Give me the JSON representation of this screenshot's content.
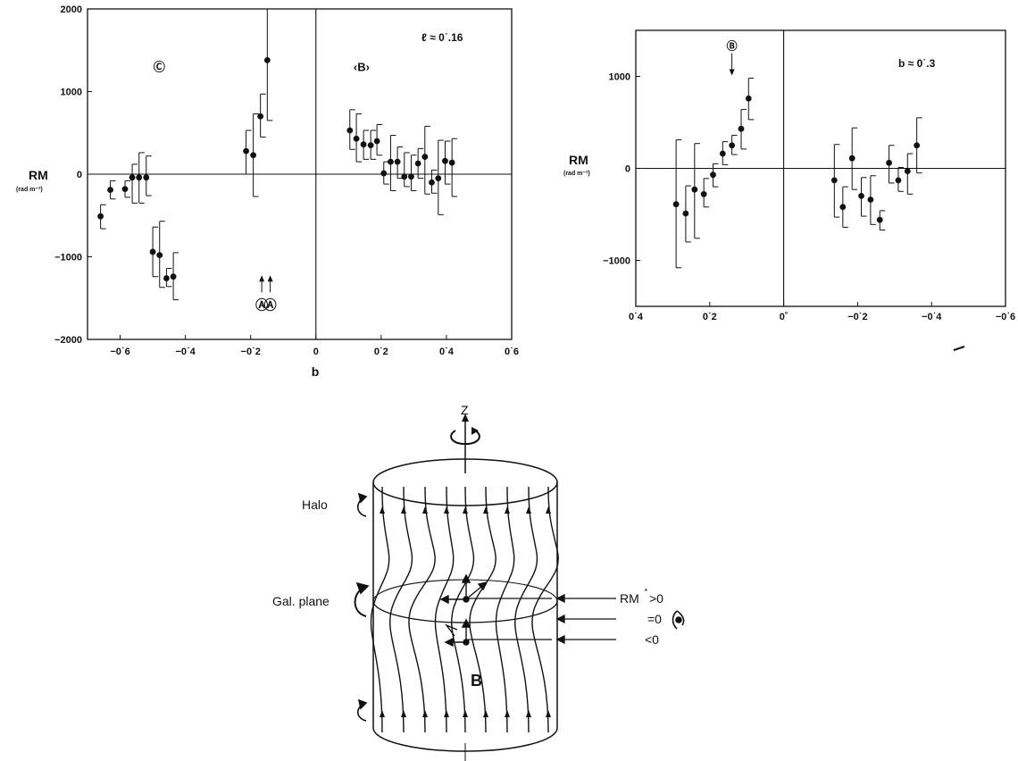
{
  "chart_data": [
    {
      "type": "scatter",
      "title": "",
      "xlabel": "b",
      "ylabel": "RM",
      "ylabel_unit": "(rad m⁻²)",
      "xlim": [
        -0.7,
        0.6
      ],
      "ylim": [
        -2000,
        2000
      ],
      "x_ticks": [
        -0.6,
        -0.4,
        -0.2,
        0,
        0.2,
        0.4,
        0.6
      ],
      "x_tick_labels": [
        "−0˙6",
        "−0˙4",
        "−0˙2",
        "0",
        "0˙2",
        "0˙4",
        "0˙6"
      ],
      "y_ticks": [
        2000,
        1000,
        0,
        -1000,
        -2000
      ],
      "y_tick_labels": [
        "2000",
        "1000",
        "0",
        "−1000",
        "−2000"
      ],
      "grid": false,
      "annotation_top_right": "ℓ ≈ 0˙.16",
      "region_labels": [
        {
          "label": "Ⓒ",
          "x": -0.48,
          "y": 1250
        },
        {
          "label": "‹B›",
          "x": 0.14,
          "y": 1250
        }
      ],
      "markers": [
        {
          "label": "Ⓐ",
          "x": -0.166,
          "arrow_from": -1300
        },
        {
          "label": "Ⓐ",
          "x": -0.14,
          "arrow_from": -1300
        }
      ],
      "series": [
        {
          "points": [
            {
              "x": -0.66,
              "y": -510,
              "lo": -660,
              "hi": -370
            },
            {
              "x": -0.63,
              "y": -190,
              "lo": -300,
              "hi": -80
            },
            {
              "x": -0.585,
              "y": -180,
              "lo": -280,
              "hi": -80
            },
            {
              "x": -0.563,
              "y": -40,
              "lo": -350,
              "hi": 120
            },
            {
              "x": -0.542,
              "y": -40,
              "lo": -350,
              "hi": 260
            },
            {
              "x": -0.52,
              "y": -40,
              "lo": -260,
              "hi": 220
            },
            {
              "x": -0.5,
              "y": -940,
              "lo": -1240,
              "hi": -640
            },
            {
              "x": -0.479,
              "y": -980,
              "lo": -1370,
              "hi": -570
            },
            {
              "x": -0.458,
              "y": -1260,
              "lo": -1360,
              "hi": -1140
            },
            {
              "x": -0.437,
              "y": -1240,
              "lo": -1520,
              "hi": -950
            },
            {
              "x": -0.214,
              "y": 280,
              "lo": 0,
              "hi": 530
            },
            {
              "x": -0.192,
              "y": 230,
              "lo": -270,
              "hi": 730
            },
            {
              "x": -0.17,
              "y": 700,
              "lo": 450,
              "hi": 970
            },
            {
              "x": -0.149,
              "y": 1380,
              "lo": 650,
              "hi": 2000
            },
            {
              "x": 0.104,
              "y": 530,
              "lo": 300,
              "hi": 780
            },
            {
              "x": 0.124,
              "y": 430,
              "lo": 150,
              "hi": 730
            },
            {
              "x": 0.146,
              "y": 360,
              "lo": 180,
              "hi": 530
            },
            {
              "x": 0.168,
              "y": 350,
              "lo": 180,
              "hi": 530
            },
            {
              "x": 0.187,
              "y": 400,
              "lo": 230,
              "hi": 600
            },
            {
              "x": 0.208,
              "y": 10,
              "lo": -120,
              "hi": 150
            },
            {
              "x": 0.229,
              "y": 150,
              "lo": -200,
              "hi": 470
            },
            {
              "x": 0.25,
              "y": 150,
              "lo": -50,
              "hi": 330
            },
            {
              "x": 0.271,
              "y": -30,
              "lo": -150,
              "hi": 260
            },
            {
              "x": 0.292,
              "y": -30,
              "lo": -200,
              "hi": 230
            },
            {
              "x": 0.313,
              "y": 130,
              "lo": -50,
              "hi": 310
            },
            {
              "x": 0.334,
              "y": 210,
              "lo": -240,
              "hi": 580
            },
            {
              "x": 0.355,
              "y": -100,
              "lo": -230,
              "hi": 50
            },
            {
              "x": 0.375,
              "y": -50,
              "lo": -490,
              "hi": 410
            },
            {
              "x": 0.396,
              "y": 160,
              "lo": -120,
              "hi": 400
            },
            {
              "x": 0.417,
              "y": 140,
              "lo": -270,
              "hi": 430
            }
          ]
        }
      ]
    },
    {
      "type": "scatter",
      "title": "",
      "ylabel": "RM",
      "ylabel_unit": "(rad m⁻²)",
      "xlim": [
        0.4,
        -0.6
      ],
      "ylim": [
        -1500,
        1500
      ],
      "x_ticks": [
        0.4,
        0.2,
        0,
        -0.2,
        -0.4,
        -0.6
      ],
      "x_tick_labels": [
        "0˙4",
        "0˙2",
        "0˚",
        "−0˙2",
        "−0˙4",
        "−0˙6"
      ],
      "y_ticks": [
        1000,
        0,
        -1000
      ],
      "y_tick_labels": [
        "1000",
        "0",
        "−1000"
      ],
      "grid": false,
      "annotation_top_right": "b ≈ 0˙.3",
      "markers": [
        {
          "label": "Ⓑ",
          "x": 0.14,
          "arrow_to": 1000
        }
      ],
      "series": [
        {
          "points": [
            {
              "x": 0.291,
              "y": -390,
              "lo": -1080,
              "hi": 310
            },
            {
              "x": 0.265,
              "y": -490,
              "lo": -800,
              "hi": -190
            },
            {
              "x": 0.241,
              "y": -230,
              "lo": -760,
              "hi": 270
            },
            {
              "x": 0.216,
              "y": -280,
              "lo": -420,
              "hi": -110
            },
            {
              "x": 0.191,
              "y": -70,
              "lo": -200,
              "hi": 50
            },
            {
              "x": 0.165,
              "y": 160,
              "lo": 40,
              "hi": 290
            },
            {
              "x": 0.14,
              "y": 250,
              "lo": 150,
              "hi": 360
            },
            {
              "x": 0.115,
              "y": 430,
              "lo": 210,
              "hi": 640
            },
            {
              "x": 0.095,
              "y": 760,
              "lo": 530,
              "hi": 980
            },
            {
              "x": -0.137,
              "y": -130,
              "lo": -530,
              "hi": 260
            },
            {
              "x": -0.16,
              "y": -420,
              "lo": -640,
              "hi": -200
            },
            {
              "x": -0.185,
              "y": 110,
              "lo": -230,
              "hi": 440
            },
            {
              "x": -0.21,
              "y": -300,
              "lo": -520,
              "hi": -100
            },
            {
              "x": -0.235,
              "y": -340,
              "lo": -610,
              "hi": -80
            },
            {
              "x": -0.26,
              "y": -560,
              "lo": -670,
              "hi": -460
            },
            {
              "x": -0.285,
              "y": 60,
              "lo": -160,
              "hi": 250
            },
            {
              "x": -0.31,
              "y": -130,
              "lo": -250,
              "hi": 10
            },
            {
              "x": -0.335,
              "y": -30,
              "lo": -280,
              "hi": 160
            },
            {
              "x": -0.36,
              "y": 250,
              "lo": -50,
              "hi": 550
            }
          ]
        }
      ]
    }
  ],
  "diagram": {
    "z_label": "Z",
    "halo_label": "Halo",
    "plane_label": "Gal. plane",
    "b_label": "B",
    "rm_gt": "RM",
    "rm_star": "*",
    "rm_gt_sym": ">0",
    "rm_eq": "=0",
    "rm_lt": "<0"
  }
}
